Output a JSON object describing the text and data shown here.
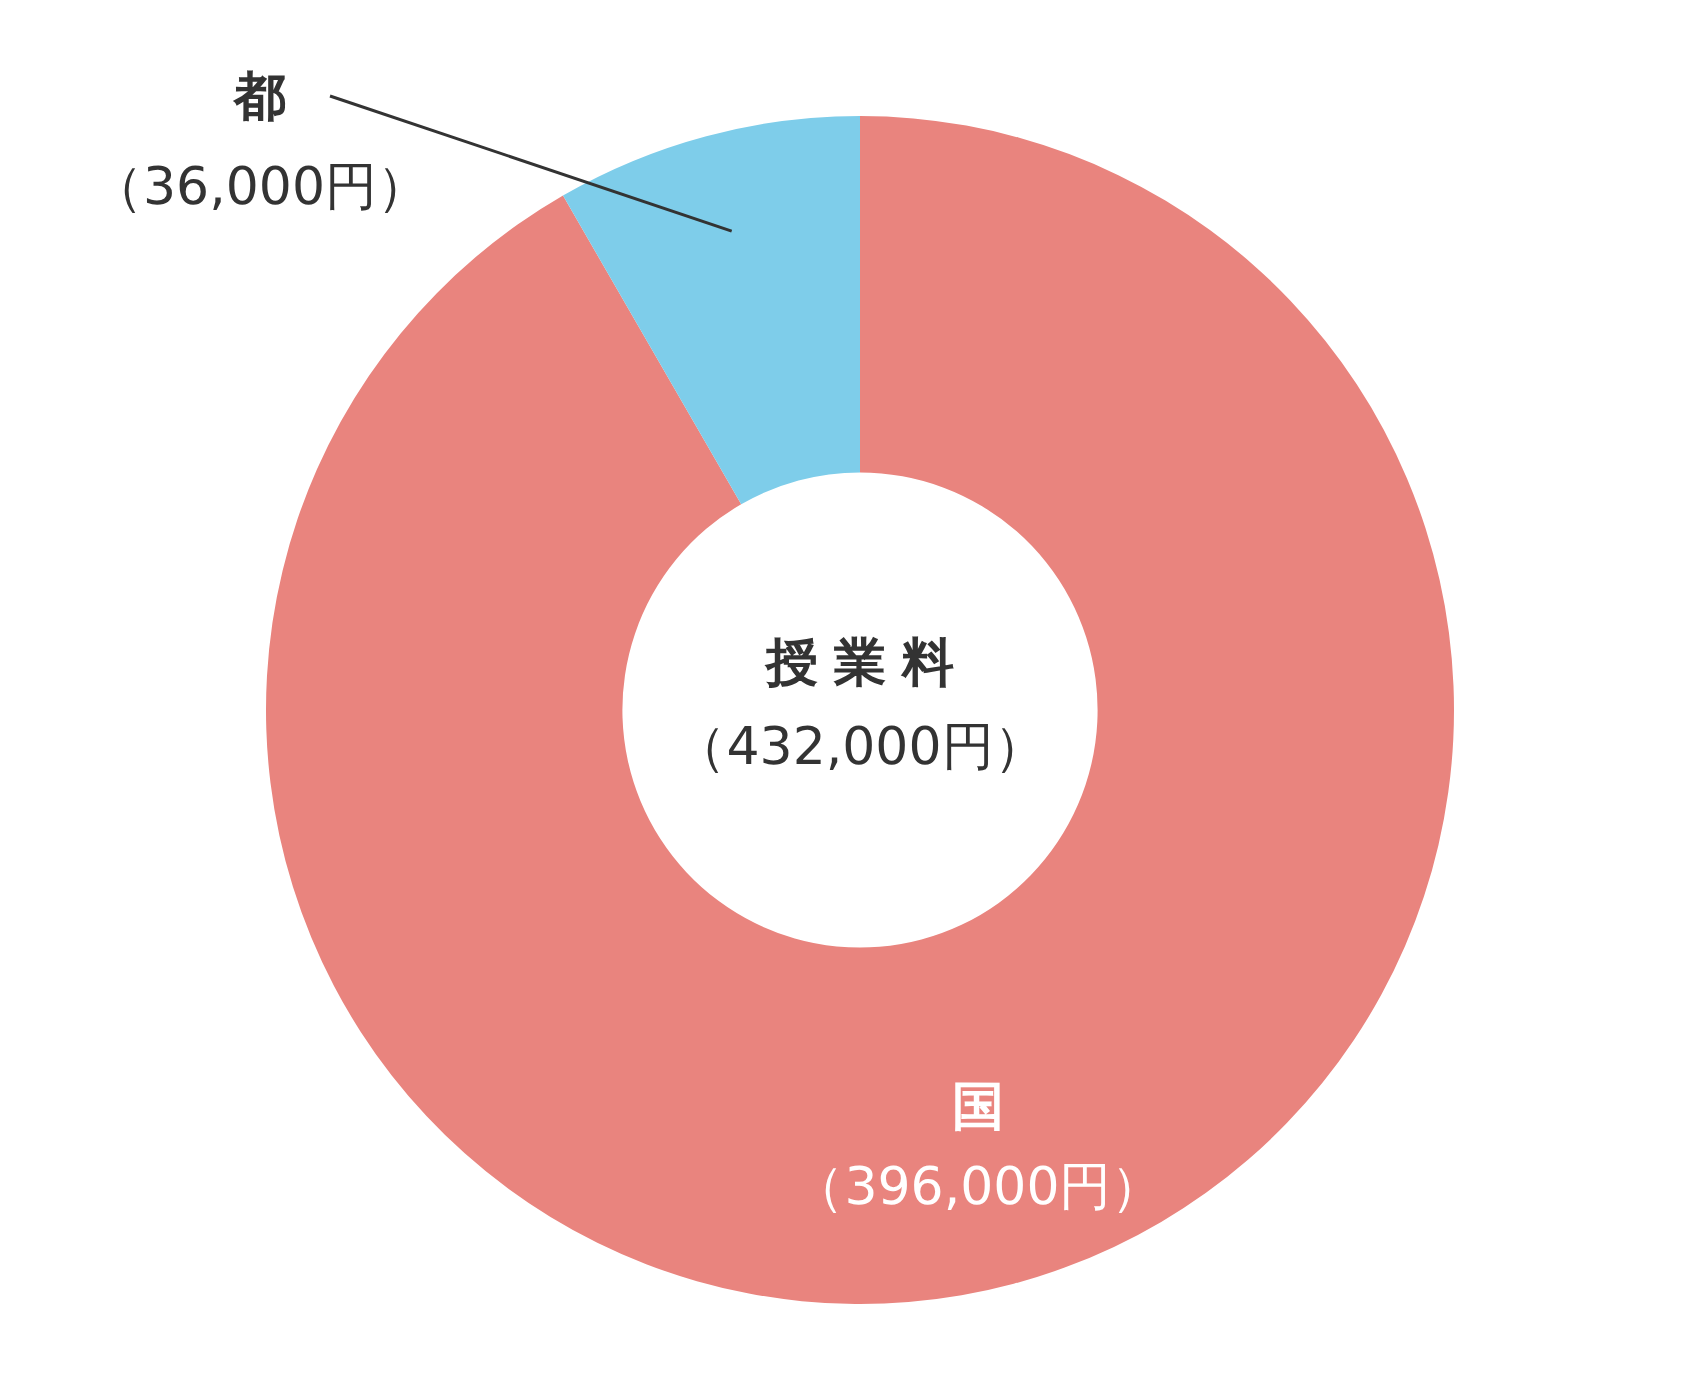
{
  "chart_data": {
    "type": "donut",
    "title": "授業料",
    "subtitle": "（432,000円）",
    "categories": [
      "国",
      "都"
    ],
    "values": [
      396000,
      36000
    ],
    "colors": [
      "#e9847e",
      "#7ecdea"
    ],
    "value_labels": [
      "（396,000円）",
      "（36,000円）"
    ],
    "legend": false
  }
}
